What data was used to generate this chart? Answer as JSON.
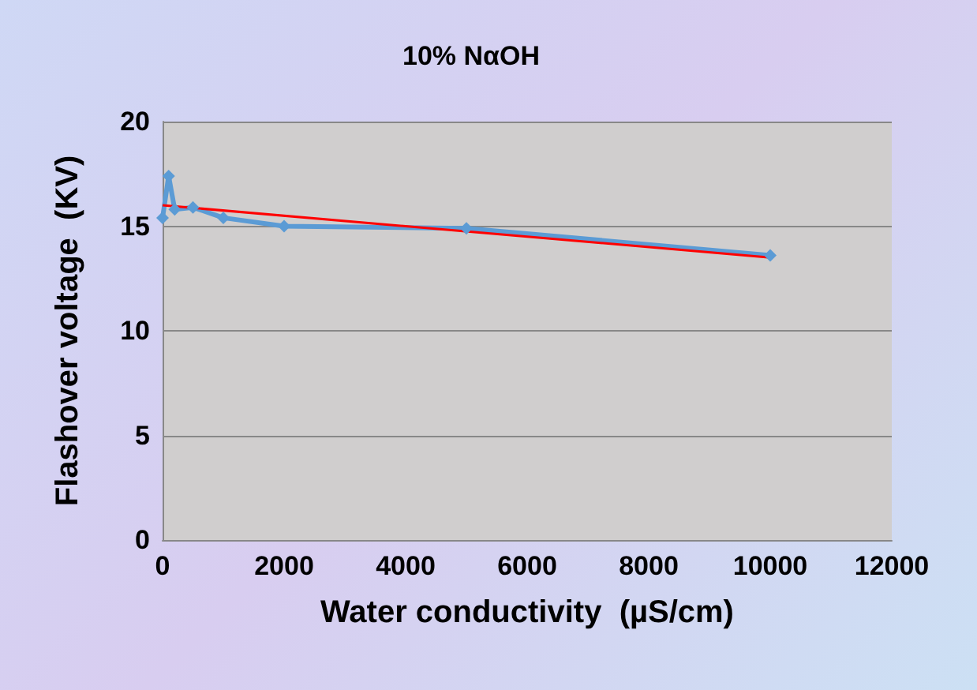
{
  "chart_data": {
    "type": "line",
    "title": "10% NαOH",
    "xlabel": "Water conductivity  (µS/cm)",
    "ylabel": "Flashover voltage  (KV)",
    "xlim": [
      0,
      12000
    ],
    "xticks": [
      0,
      2000,
      4000,
      6000,
      8000,
      10000,
      12000
    ],
    "ylim": [
      0,
      20
    ],
    "yticks": [
      0,
      5,
      10,
      15,
      20
    ],
    "grid": "y",
    "marker": "diamond",
    "series": [
      {
        "color": "#5b9bd5",
        "x": [
          0,
          100,
          200,
          500,
          1000,
          2000,
          5000,
          10000
        ],
        "values": [
          15.4,
          17.4,
          15.8,
          15.9,
          15.4,
          15.0,
          14.9,
          13.6
        ]
      },
      {
        "type": "line",
        "color": "#ff0000",
        "marker": "none",
        "x": [
          0,
          10000
        ],
        "values": [
          16.0,
          13.5
        ]
      }
    ]
  }
}
